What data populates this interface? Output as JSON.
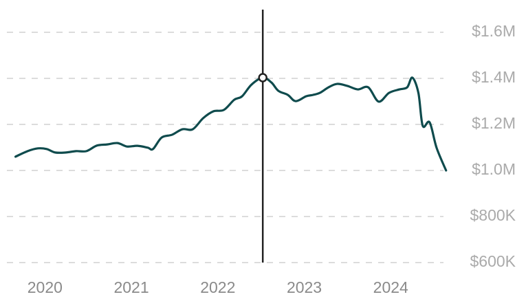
{
  "chart_data": {
    "type": "line",
    "x": [
      2019.66,
      2019.8,
      2019.92,
      2020.02,
      2020.12,
      2020.24,
      2020.36,
      2020.48,
      2020.6,
      2020.72,
      2020.84,
      2020.95,
      2021.07,
      2021.19,
      2021.25,
      2021.35,
      2021.47,
      2021.59,
      2021.71,
      2021.83,
      2021.95,
      2022.07,
      2022.19,
      2022.28,
      2022.39,
      2022.52,
      2022.62,
      2022.7,
      2022.81,
      2022.9,
      2023.02,
      2023.1,
      2023.18,
      2023.28,
      2023.38,
      2023.5,
      2023.62,
      2023.74,
      2023.86,
      2023.98,
      2024.1,
      2024.19,
      2024.25,
      2024.32,
      2024.37,
      2024.45,
      2024.53,
      2024.64
    ],
    "values": [
      1060000,
      1084000,
      1096000,
      1093000,
      1078000,
      1078000,
      1084000,
      1084000,
      1108000,
      1113000,
      1119000,
      1104000,
      1107000,
      1099000,
      1093000,
      1143000,
      1155000,
      1179000,
      1179000,
      1227000,
      1257000,
      1263000,
      1307000,
      1322000,
      1373000,
      1403000,
      1382000,
      1346000,
      1328000,
      1301000,
      1322000,
      1328000,
      1337000,
      1361000,
      1376000,
      1367000,
      1352000,
      1361000,
      1299000,
      1337000,
      1352000,
      1361000,
      1403000,
      1337000,
      1194000,
      1209000,
      1099000,
      1000000
    ],
    "color": "#0f4b4d",
    "cursor": {
      "x": 2022.52,
      "y": 1403000
    },
    "xlim": [
      2019.56,
      2024.65
    ],
    "xticks": [
      2020,
      2021,
      2022,
      2023,
      2024
    ],
    "ylim": [
      600000,
      1650000
    ],
    "yticks": [
      {
        "value": 600000,
        "label": "$600K"
      },
      {
        "value": 800000,
        "label": "$800K"
      },
      {
        "value": 1000000,
        "label": "$1.0M"
      },
      {
        "value": 1200000,
        "label": "$1.2M"
      },
      {
        "value": 1400000,
        "label": "$1.4M"
      },
      {
        "value": 1600000,
        "label": "$1.6M"
      }
    ],
    "grid": true
  }
}
